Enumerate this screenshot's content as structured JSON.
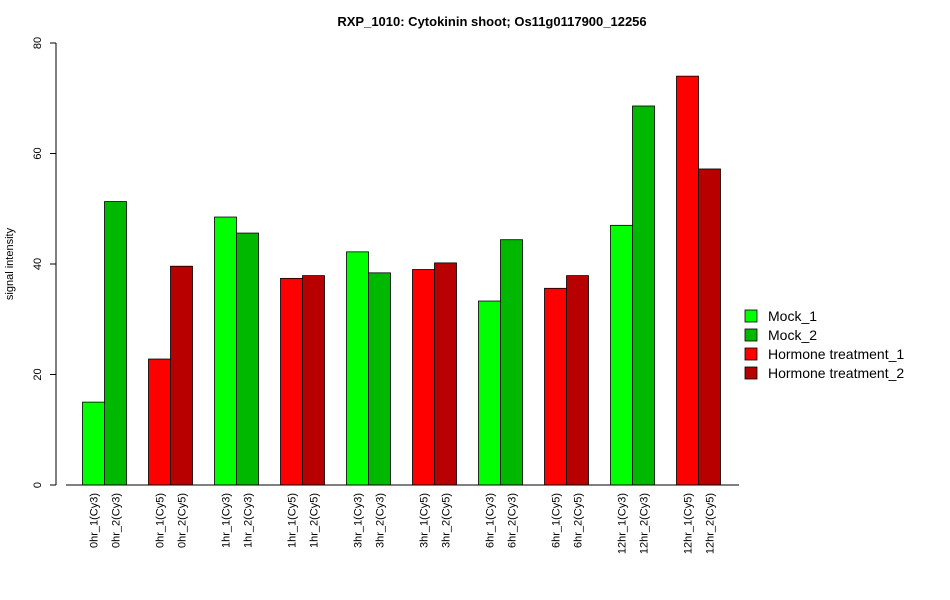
{
  "chart_data": {
    "type": "bar",
    "title": "RXP_1010: Cytokinin shoot; Os11g0117900_12256",
    "xlabel": "",
    "ylabel": "signal intensity",
    "ylim": [
      0,
      80
    ],
    "yticks": [
      0,
      20,
      40,
      60,
      80
    ],
    "grid": false,
    "legend_position": "right",
    "categories": [
      "0hr_1(Cy3)",
      "0hr_2(Cy3)",
      "0hr_1(Cy5)",
      "0hr_2(Cy5)",
      "1hr_1(Cy3)",
      "1hr_2(Cy3)",
      "1hr_1(Cy5)",
      "1hr_2(Cy5)",
      "3hr_1(Cy3)",
      "3hr_2(Cy3)",
      "3hr_1(Cy5)",
      "3hr_2(Cy5)",
      "6hr_1(Cy3)",
      "6hr_2(Cy3)",
      "6hr_1(Cy5)",
      "6hr_2(Cy5)",
      "12hr_1(Cy3)",
      "12hr_2(Cy3)",
      "12hr_1(Cy5)",
      "12hr_2(Cy5)"
    ],
    "values": [
      15.0,
      51.3,
      22.8,
      39.6,
      48.5,
      45.6,
      37.4,
      37.9,
      42.2,
      38.4,
      39.0,
      40.2,
      33.3,
      44.4,
      35.6,
      37.9,
      47.0,
      68.6,
      74.0,
      57.2
    ],
    "bar_series": [
      0,
      1,
      2,
      3,
      0,
      1,
      2,
      3,
      0,
      1,
      2,
      3,
      0,
      1,
      2,
      3,
      0,
      1,
      2,
      3
    ],
    "series": [
      {
        "name": "Mock_1",
        "color": "#00ff00"
      },
      {
        "name": "Mock_2",
        "color": "#00b800"
      },
      {
        "name": "Hormone treatment_1",
        "color": "#ff0000"
      },
      {
        "name": "Hormone treatment_2",
        "color": "#b80000"
      }
    ]
  }
}
